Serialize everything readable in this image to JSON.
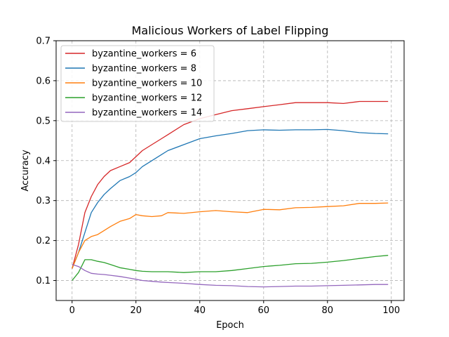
{
  "chart_data": {
    "type": "line",
    "title": "Malicious Workers of Label Flipping",
    "xlabel": "Epoch",
    "ylabel": "Accuracy",
    "xlim": [
      -5,
      104
    ],
    "ylim": [
      0.05,
      0.7
    ],
    "xticks": [
      0,
      20,
      40,
      60,
      80,
      100
    ],
    "yticks": [
      0.1,
      0.2,
      0.3,
      0.4,
      0.5,
      0.6,
      0.7
    ],
    "xtick_labels": [
      "0",
      "20",
      "40",
      "60",
      "80",
      "100"
    ],
    "ytick_labels": [
      "0.1",
      "0.2",
      "0.3",
      "0.4",
      "0.5",
      "0.6",
      "0.7"
    ],
    "grid": true,
    "legend_position": "upper-left",
    "x": [
      0,
      2,
      4,
      6,
      8,
      10,
      12,
      15,
      18,
      20,
      22,
      25,
      28,
      30,
      35,
      40,
      45,
      50,
      55,
      60,
      65,
      70,
      75,
      80,
      85,
      90,
      95,
      99
    ],
    "series": [
      {
        "name": "byzantine_workers = 6",
        "color": "#d62728",
        "values": [
          0.13,
          0.19,
          0.27,
          0.31,
          0.34,
          0.36,
          0.375,
          0.385,
          0.395,
          0.41,
          0.425,
          0.44,
          0.455,
          0.465,
          0.49,
          0.505,
          0.515,
          0.525,
          0.53,
          0.535,
          0.54,
          0.545,
          0.545,
          0.545,
          0.543,
          0.548,
          0.548,
          0.548
        ]
      },
      {
        "name": "byzantine_workers = 8",
        "color": "#1f77b4",
        "values": [
          0.13,
          0.17,
          0.22,
          0.27,
          0.295,
          0.315,
          0.33,
          0.35,
          0.36,
          0.37,
          0.385,
          0.4,
          0.415,
          0.425,
          0.44,
          0.455,
          0.462,
          0.468,
          0.475,
          0.477,
          0.476,
          0.477,
          0.477,
          0.478,
          0.475,
          0.47,
          0.468,
          0.467
        ]
      },
      {
        "name": "byzantine_workers = 10",
        "color": "#ff7f0e",
        "values": [
          0.13,
          0.17,
          0.2,
          0.21,
          0.215,
          0.225,
          0.235,
          0.248,
          0.255,
          0.265,
          0.262,
          0.26,
          0.262,
          0.27,
          0.268,
          0.272,
          0.275,
          0.272,
          0.27,
          0.278,
          0.277,
          0.282,
          0.283,
          0.285,
          0.287,
          0.293,
          0.293,
          0.294
        ]
      },
      {
        "name": "byzantine_workers = 12",
        "color": "#2ca02c",
        "values": [
          0.1,
          0.12,
          0.152,
          0.152,
          0.148,
          0.145,
          0.14,
          0.132,
          0.128,
          0.125,
          0.123,
          0.122,
          0.122,
          0.122,
          0.12,
          0.122,
          0.122,
          0.125,
          0.13,
          0.135,
          0.138,
          0.142,
          0.143,
          0.146,
          0.15,
          0.155,
          0.16,
          0.163
        ]
      },
      {
        "name": "byzantine_workers = 14",
        "color": "#9467bd",
        "values": [
          0.14,
          0.135,
          0.125,
          0.118,
          0.116,
          0.115,
          0.113,
          0.11,
          0.106,
          0.103,
          0.1,
          0.098,
          0.096,
          0.095,
          0.093,
          0.09,
          0.088,
          0.087,
          0.085,
          0.084,
          0.085,
          0.086,
          0.086,
          0.087,
          0.088,
          0.089,
          0.09,
          0.09
        ]
      }
    ]
  }
}
